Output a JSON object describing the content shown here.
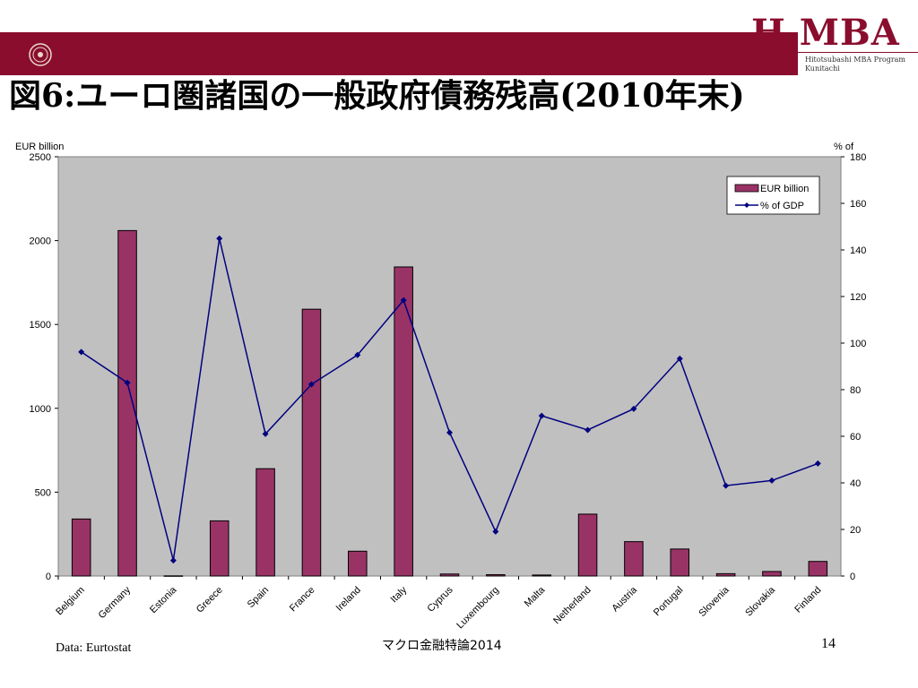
{
  "header": {
    "logo_text": "H MBA",
    "logo_sub_line1": "Hitotsubashi MBA Program",
    "logo_sub_line2": "Kunitachi",
    "title": "図6:ユーロ圏諸国の一般政府債務残高(2010年末)"
  },
  "colors": {
    "brand": "#8a0d2e",
    "bar": "#993366",
    "line": "#000080",
    "plot_bg": "#c0c0c0"
  },
  "footer": {
    "source": "Data: Eurtostat",
    "course": "マクロ金融特論2014",
    "page_number": "14"
  },
  "chart_data": {
    "type": "bar",
    "title": "",
    "xlabel": "",
    "ylabel": "EUR billion",
    "y2label": "% of",
    "ylim": [
      0,
      2500
    ],
    "y2lim": [
      0,
      180
    ],
    "yticks": [
      0,
      500,
      1000,
      1500,
      2000,
      2500
    ],
    "y2ticks": [
      0,
      20,
      40,
      60,
      80,
      100,
      120,
      140,
      160,
      180
    ],
    "grid": false,
    "legend_position": "top-right",
    "categories": [
      "Belgium",
      "Germany",
      "Estonia",
      "Greece",
      "Spain",
      "France",
      "Ireland",
      "Italy",
      "Cyprus",
      "Luxembourg",
      "Malta",
      "Netherland",
      "Austria",
      "Portugal",
      "Slovenia",
      "Slovakia",
      "Finland"
    ],
    "series": [
      {
        "name": "EUR billion",
        "type": "bar",
        "axis": "left",
        "values": [
          340,
          2060,
          1,
          329,
          640,
          1591,
          148,
          1843,
          12,
          8,
          6,
          369,
          205,
          161,
          14,
          27,
          87
        ]
      },
      {
        "name": "% of GDP",
        "type": "line",
        "axis": "right",
        "values": [
          96.2,
          83.0,
          6.7,
          144.9,
          61.0,
          82.3,
          94.9,
          118.4,
          61.6,
          19.1,
          68.8,
          62.7,
          71.8,
          93.3,
          38.8,
          41.0,
          48.3
        ]
      }
    ]
  }
}
